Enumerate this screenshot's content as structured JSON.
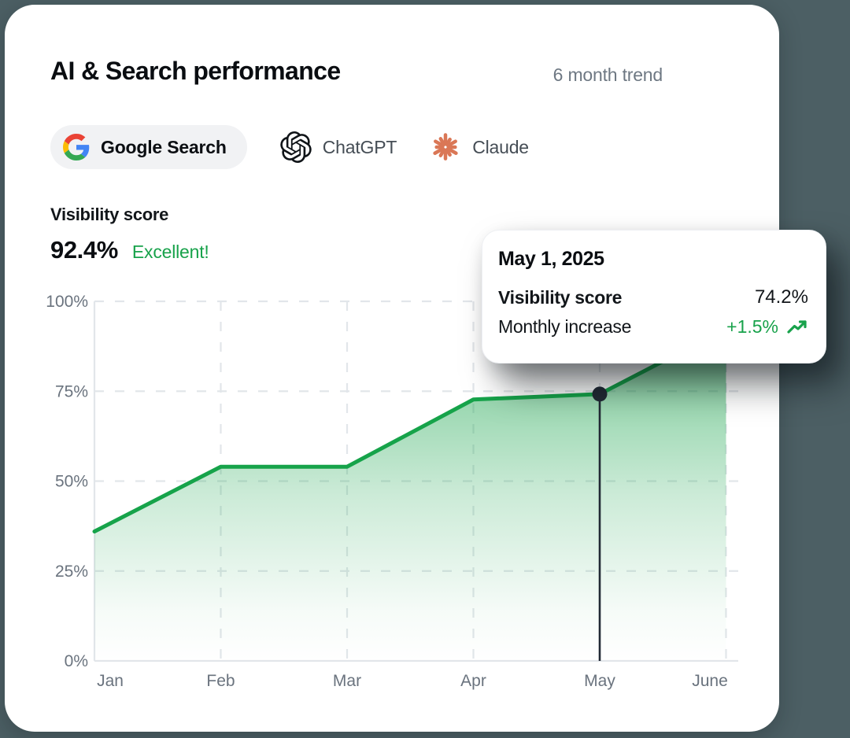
{
  "theme": {
    "page_bg": "#4C5F64",
    "card_bg": "#FFFFFF",
    "accent_green": "#16A34A",
    "text_green": "#18A24B",
    "text_dark": "#0A0D11",
    "text_gray": "#6E7883",
    "axis_text": "#6A737E",
    "grid_color": "#E2E6EA",
    "marker_color": "#222A35",
    "pill_bg": "#F1F2F4",
    "claude_orange": "#DA7756",
    "google_colors": {
      "red": "#EA4335",
      "blue": "#4285F4",
      "yellow": "#FBBC05",
      "green": "#34A853"
    }
  },
  "header": {
    "title": "AI & Search performance",
    "trend_label": "6 month trend"
  },
  "sources": {
    "google": {
      "label": "Google Search",
      "selected": true
    },
    "chatgpt": {
      "label": "ChatGPT",
      "selected": false
    },
    "claude": {
      "label": "Claude",
      "selected": false
    }
  },
  "score": {
    "label": "Visibility score",
    "value": "92.4%",
    "status": "Excellent!"
  },
  "tooltip": {
    "date": "May 1, 2025",
    "row1": {
      "label": "Visibility score",
      "value": "74.2%"
    },
    "row2": {
      "label": "Monthly increase",
      "value": "+1.5%"
    }
  },
  "chart_data": {
    "type": "area",
    "x": [
      "Jan",
      "Feb",
      "Mar",
      "Apr",
      "May",
      "June"
    ],
    "values": [
      36,
      54,
      54,
      72.7,
      74.2,
      92.4
    ],
    "ylabels": [
      "0%",
      "25%",
      "50%",
      "75%",
      "100%"
    ],
    "yticks": [
      0,
      25,
      50,
      75,
      100
    ],
    "ylim": [
      0,
      100
    ],
    "grid": "dashed",
    "legend": "none",
    "line_color": "#16A34A",
    "area_fill": "green-gradient-to-transparent",
    "highlight": {
      "month": "May",
      "value": 74.2,
      "date": "May 1, 2025",
      "monthly_increase": "+1.5%"
    }
  }
}
